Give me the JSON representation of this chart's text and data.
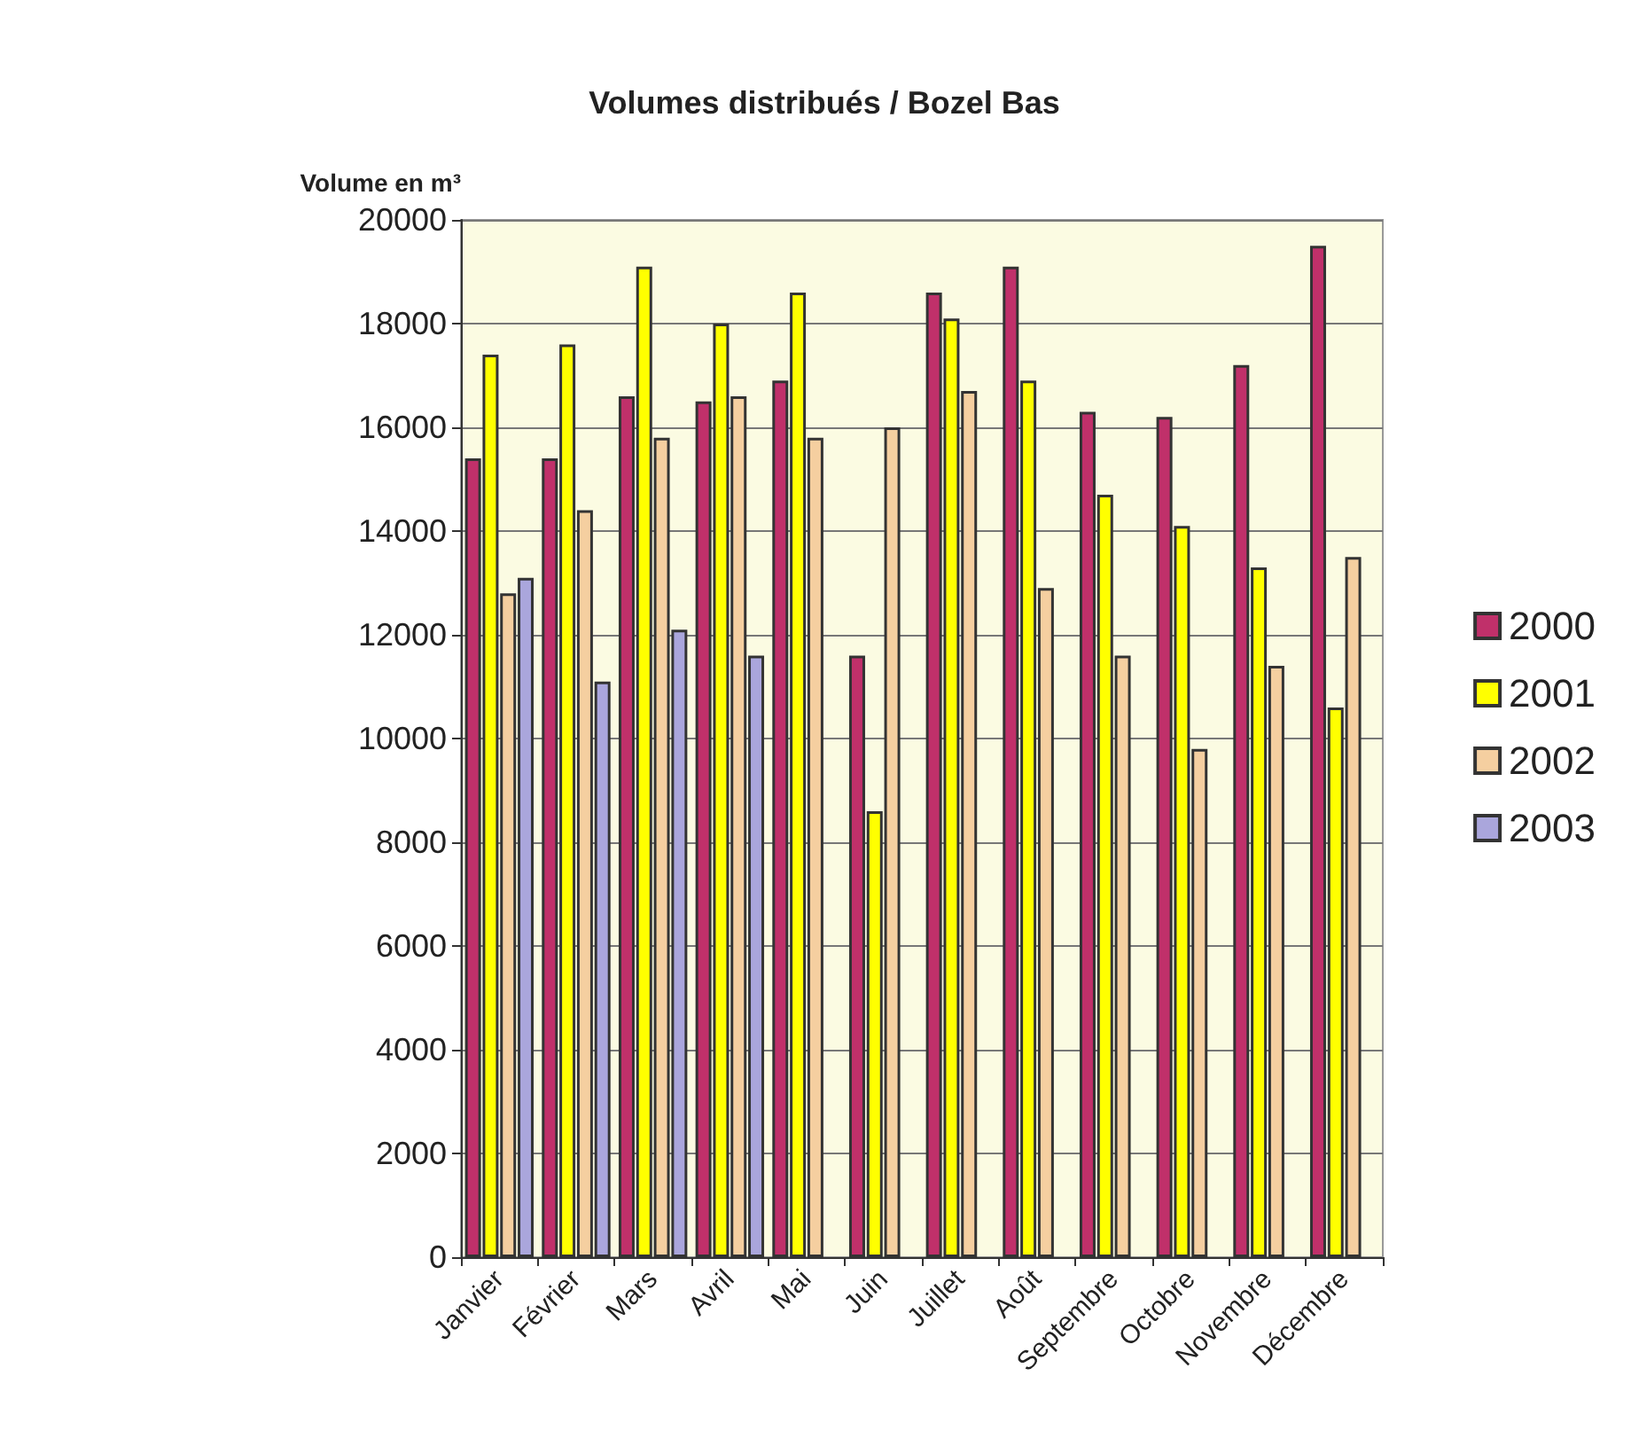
{
  "chart_data": {
    "type": "bar",
    "title": "Volumes distribués / Bozel Bas",
    "ylabel": "Volume en m³",
    "categories": [
      "Janvier",
      "Février",
      "Mars",
      "Avril",
      "Mai",
      "Juin",
      "Juillet",
      "Août",
      "Septembre",
      "Octobre",
      "Novembre",
      "Décembre"
    ],
    "series": [
      {
        "name": "2000",
        "color": "#c0306a",
        "values": [
          15400,
          15400,
          16600,
          16500,
          16900,
          11600,
          18600,
          19100,
          16300,
          16200,
          17200,
          19500
        ]
      },
      {
        "name": "2001",
        "color": "#ffff00",
        "values": [
          17400,
          17600,
          19100,
          18000,
          18600,
          8600,
          18100,
          16900,
          14700,
          14100,
          13300,
          10600
        ]
      },
      {
        "name": "2002",
        "color": "#f5cfa0",
        "values": [
          12800,
          14400,
          15800,
          16600,
          15800,
          16000,
          16700,
          12900,
          11600,
          9800,
          11400,
          13500
        ]
      },
      {
        "name": "2003",
        "color": "#aaa6dc",
        "values": [
          13100,
          11100,
          12100,
          11600,
          null,
          null,
          null,
          null,
          null,
          null,
          null,
          null
        ]
      }
    ],
    "ylim": [
      0,
      20000
    ],
    "yticks": [
      0,
      2000,
      4000,
      6000,
      8000,
      10000,
      12000,
      14000,
      16000,
      18000,
      20000
    ],
    "grid": "y",
    "legend": "right"
  }
}
